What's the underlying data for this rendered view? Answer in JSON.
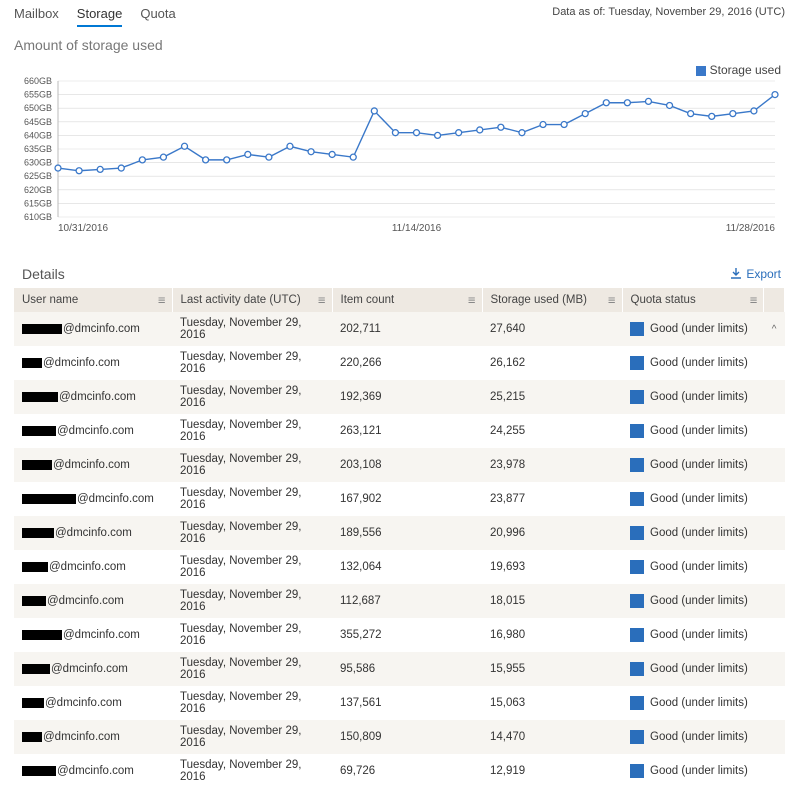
{
  "header": {
    "tabs": [
      "Mailbox",
      "Storage",
      "Quota"
    ],
    "active_tab_index": 1,
    "data_as_of_prefix": "Data as of: ",
    "data_as_of_value": "Tuesday, November 29, 2016 (UTC)"
  },
  "subtitle": "Amount of storage used",
  "chart": {
    "type": "line",
    "legend_label": "Storage used",
    "series_color": "#3a78c9",
    "marker_fill": "#ffffff",
    "marker_stroke": "#3a78c9",
    "grid_color": "#d9d9d9",
    "y_axis": {
      "min": 610,
      "max": 660,
      "step": 5,
      "unit": "GB",
      "labels": [
        "660GB",
        "655GB",
        "650GB",
        "645GB",
        "640GB",
        "635GB",
        "630GB",
        "625GB",
        "620GB",
        "615GB",
        "610GB"
      ]
    },
    "x_axis": {
      "labels": [
        "10/31/2016",
        "11/14/2016",
        "11/28/2016"
      ]
    },
    "values": [
      628,
      627,
      627.5,
      628,
      631,
      632,
      636,
      631,
      631,
      633,
      632,
      636,
      634,
      633,
      632,
      649,
      641,
      641,
      640,
      641,
      642,
      643,
      641,
      644,
      644,
      648,
      652,
      652,
      652.5,
      651,
      648,
      647,
      648,
      649,
      655
    ]
  },
  "details": {
    "title": "Details",
    "export_label": "Export",
    "columns": [
      "User name",
      "Last activity date (UTC)",
      "Item count",
      "Storage used (MB)",
      "Quota status"
    ],
    "quota_good_label": "Good (under limits)",
    "rows": [
      {
        "redact_w": 40,
        "user": "@dmcinfo.com",
        "date": "Tuesday, November 29, 2016",
        "items": "202,711",
        "storage": "27,640"
      },
      {
        "redact_w": 20,
        "user": "@dmcinfo.com",
        "date": "Tuesday, November 29, 2016",
        "items": "220,266",
        "storage": "26,162"
      },
      {
        "redact_w": 36,
        "user": "@dmcinfo.com",
        "date": "Tuesday, November 29, 2016",
        "items": "192,369",
        "storage": "25,215"
      },
      {
        "redact_w": 34,
        "user": "@dmcinfo.com",
        "date": "Tuesday, November 29, 2016",
        "items": "263,121",
        "storage": "24,255"
      },
      {
        "redact_w": 30,
        "user": "@dmcinfo.com",
        "date": "Tuesday, November 29, 2016",
        "items": "203,108",
        "storage": "23,978"
      },
      {
        "redact_w": 54,
        "user": "@dmcinfo.com",
        "date": "Tuesday, November 29, 2016",
        "items": "167,902",
        "storage": "23,877"
      },
      {
        "redact_w": 32,
        "user": "@dmcinfo.com",
        "date": "Tuesday, November 29, 2016",
        "items": "189,556",
        "storage": "20,996"
      },
      {
        "redact_w": 26,
        "user": "@dmcinfo.com",
        "date": "Tuesday, November 29, 2016",
        "items": "132,064",
        "storage": "19,693"
      },
      {
        "redact_w": 24,
        "user": "@dmcinfo.com",
        "date": "Tuesday, November 29, 2016",
        "items": "112,687",
        "storage": "18,015"
      },
      {
        "redact_w": 40,
        "user": "@dmcinfo.com",
        "date": "Tuesday, November 29, 2016",
        "items": "355,272",
        "storage": "16,980"
      },
      {
        "redact_w": 28,
        "user": "@dmcinfo.com",
        "date": "Tuesday, November 29, 2016",
        "items": "95,586",
        "storage": "15,955"
      },
      {
        "redact_w": 22,
        "user": "@dmcinfo.com",
        "date": "Tuesday, November 29, 2016",
        "items": "137,561",
        "storage": "15,063"
      },
      {
        "redact_w": 20,
        "user": "@dmcinfo.com",
        "date": "Tuesday, November 29, 2016",
        "items": "150,809",
        "storage": "14,470"
      },
      {
        "redact_w": 34,
        "user": "@dmcinfo.com",
        "date": "Tuesday, November 29, 2016",
        "items": "69,726",
        "storage": "12,919"
      }
    ]
  }
}
